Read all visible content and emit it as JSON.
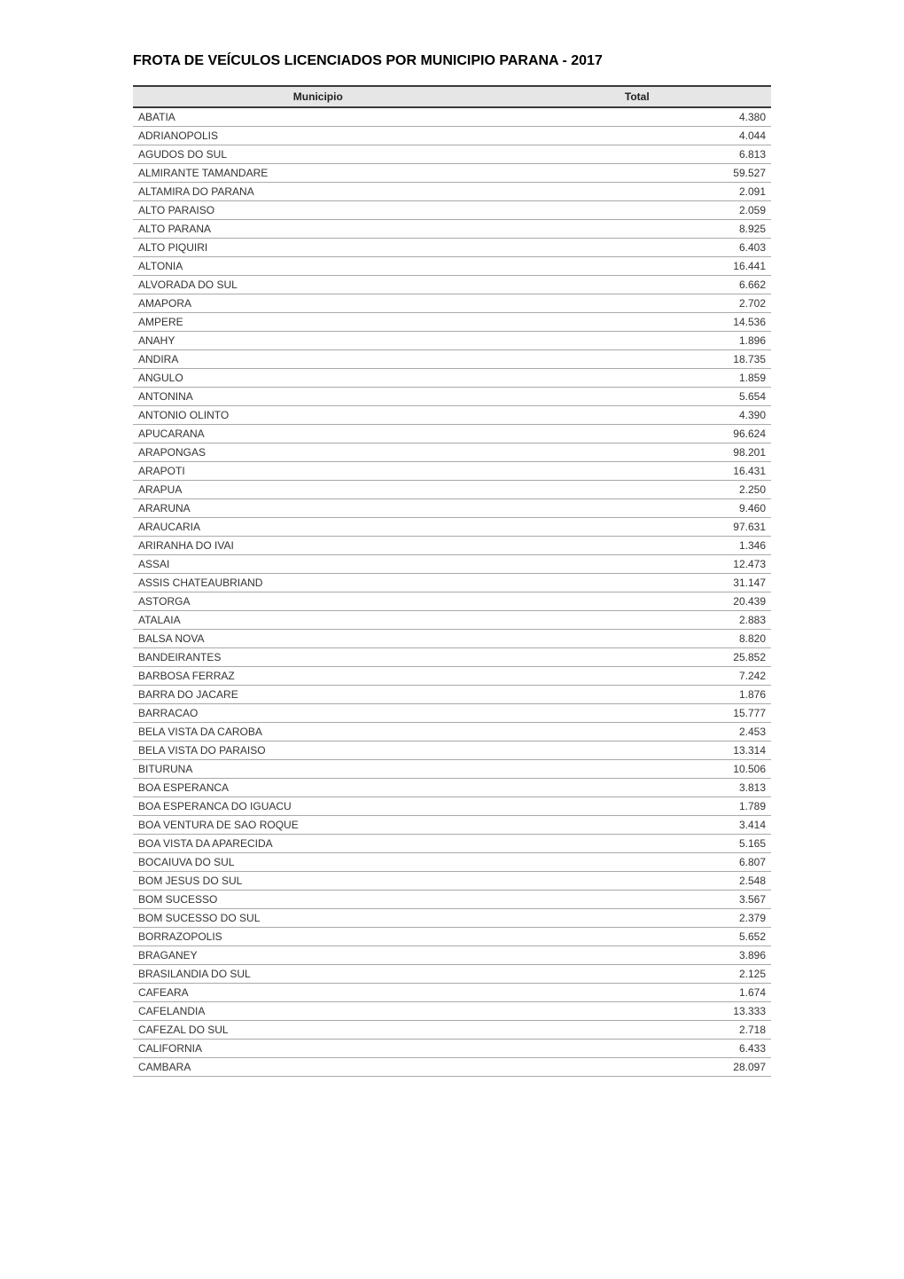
{
  "title": "FROTA DE VEÍCULOS LICENCIADOS POR MUNICIPIO PARANA - 2017",
  "table": {
    "columns": [
      "Municipio",
      "Total"
    ],
    "column_widths_pct": [
      58,
      42
    ],
    "column_align": [
      "left",
      "right"
    ],
    "header_bg": "#e6e6e6",
    "header_border_color": "#3a3a3a",
    "row_border_color": "#a9a9a9",
    "font_family": "Verdana",
    "cell_fontsize": 12,
    "header_fontsize": 12,
    "text_color": "#333333",
    "header_text_color": "#222222",
    "background_color": "#ffffff",
    "rows": [
      [
        "ABATIA",
        "4.380"
      ],
      [
        "ADRIANOPOLIS",
        "4.044"
      ],
      [
        "AGUDOS DO SUL",
        "6.813"
      ],
      [
        "ALMIRANTE TAMANDARE",
        "59.527"
      ],
      [
        "ALTAMIRA DO PARANA",
        "2.091"
      ],
      [
        "ALTO PARAISO",
        "2.059"
      ],
      [
        "ALTO PARANA",
        "8.925"
      ],
      [
        "ALTO PIQUIRI",
        "6.403"
      ],
      [
        "ALTONIA",
        "16.441"
      ],
      [
        "ALVORADA DO SUL",
        "6.662"
      ],
      [
        "AMAPORA",
        "2.702"
      ],
      [
        "AMPERE",
        "14.536"
      ],
      [
        "ANAHY",
        "1.896"
      ],
      [
        "ANDIRA",
        "18.735"
      ],
      [
        "ANGULO",
        "1.859"
      ],
      [
        "ANTONINA",
        "5.654"
      ],
      [
        "ANTONIO OLINTO",
        "4.390"
      ],
      [
        "APUCARANA",
        "96.624"
      ],
      [
        "ARAPONGAS",
        "98.201"
      ],
      [
        "ARAPOTI",
        "16.431"
      ],
      [
        "ARAPUA",
        "2.250"
      ],
      [
        "ARARUNA",
        "9.460"
      ],
      [
        "ARAUCARIA",
        "97.631"
      ],
      [
        "ARIRANHA DO IVAI",
        "1.346"
      ],
      [
        "ASSAI",
        "12.473"
      ],
      [
        "ASSIS CHATEAUBRIAND",
        "31.147"
      ],
      [
        "ASTORGA",
        "20.439"
      ],
      [
        "ATALAIA",
        "2.883"
      ],
      [
        "BALSA NOVA",
        "8.820"
      ],
      [
        "BANDEIRANTES",
        "25.852"
      ],
      [
        "BARBOSA FERRAZ",
        "7.242"
      ],
      [
        "BARRA DO JACARE",
        "1.876"
      ],
      [
        "BARRACAO",
        "15.777"
      ],
      [
        "BELA VISTA DA CAROBA",
        "2.453"
      ],
      [
        "BELA VISTA DO PARAISO",
        "13.314"
      ],
      [
        "BITURUNA",
        "10.506"
      ],
      [
        "BOA ESPERANCA",
        "3.813"
      ],
      [
        "BOA ESPERANCA DO IGUACU",
        "1.789"
      ],
      [
        "BOA VENTURA DE SAO ROQUE",
        "3.414"
      ],
      [
        "BOA VISTA DA APARECIDA",
        "5.165"
      ],
      [
        "BOCAIUVA DO SUL",
        "6.807"
      ],
      [
        "BOM JESUS DO SUL",
        "2.548"
      ],
      [
        "BOM SUCESSO",
        "3.567"
      ],
      [
        "BOM SUCESSO DO SUL",
        "2.379"
      ],
      [
        "BORRAZOPOLIS",
        "5.652"
      ],
      [
        "BRAGANEY",
        "3.896"
      ],
      [
        "BRASILANDIA DO SUL",
        "2.125"
      ],
      [
        "CAFEARA",
        "1.674"
      ],
      [
        "CAFELANDIA",
        "13.333"
      ],
      [
        "CAFEZAL DO SUL",
        "2.718"
      ],
      [
        "CALIFORNIA",
        "6.433"
      ],
      [
        "CAMBARA",
        "28.097"
      ]
    ]
  }
}
